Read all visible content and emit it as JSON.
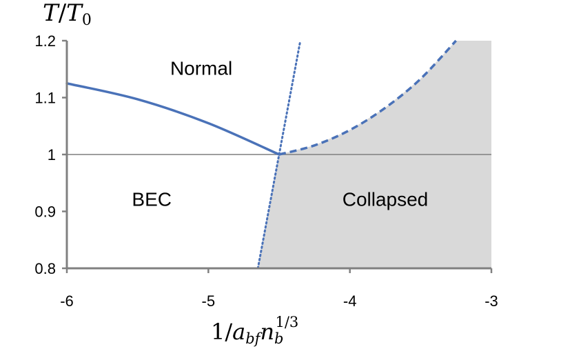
{
  "chart_data": {
    "type": "line",
    "title": "",
    "ylabel": {
      "main": "T",
      "slash": "/",
      "base": "T",
      "sub": "0"
    },
    "xlabel": {
      "prefix": "1/",
      "a": "a",
      "a_sub": "bf",
      "n": "n",
      "n_sub": "b",
      "n_sup": "1/3"
    },
    "xlim": [
      -6,
      -3
    ],
    "ylim": [
      0.8,
      1.2
    ],
    "x_ticks": [
      -6,
      -5,
      -4,
      -3
    ],
    "x_tick_labels": [
      "-6",
      "-5",
      "-4",
      "-3"
    ],
    "y_ticks": [
      0.8,
      0.9,
      1.0,
      1.1,
      1.2
    ],
    "y_tick_labels": [
      "0.8",
      "0.9",
      "1",
      "1.1",
      "1.2"
    ],
    "reference_line": {
      "y": 1.0,
      "color": "#7f7f7f"
    },
    "colors": {
      "series": "#4a72b8",
      "shade": "#d9d9d9",
      "axis": "#808080"
    },
    "series": [
      {
        "style": "solid",
        "x": [
          -6.0,
          -5.5,
          -5.0,
          -4.5
        ],
        "y": [
          1.125,
          1.097,
          1.055,
          1.0
        ]
      },
      {
        "style": "dotted",
        "x": [
          -4.65,
          -4.5,
          -4.35
        ],
        "y": [
          0.8,
          1.0,
          1.2
        ]
      },
      {
        "style": "dashed",
        "x": [
          -4.5,
          -4.25,
          -4.0,
          -3.75,
          -3.5,
          -3.25
        ],
        "y": [
          1.0,
          1.016,
          1.043,
          1.082,
          1.133,
          1.2
        ]
      }
    ],
    "shaded_region": {
      "label": "Collapsed"
    },
    "annotations": [
      {
        "id": "normal",
        "text": "Normal",
        "x": -5.05,
        "y": 1.14
      },
      {
        "id": "bec",
        "text": "BEC",
        "x": -5.4,
        "y": 0.91
      },
      {
        "id": "collapsed",
        "text": "Collapsed",
        "x": -3.75,
        "y": 0.91
      }
    ]
  }
}
